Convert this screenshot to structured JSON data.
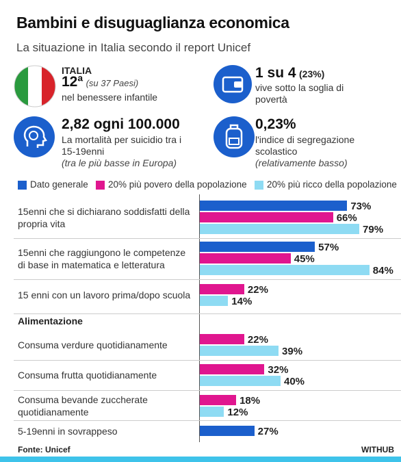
{
  "header": {
    "title": "Bambini e disuguaglianza economica",
    "subtitle": "La situazione in Italia secondo il report Unicef"
  },
  "stats": [
    {
      "heading": "ITALIA",
      "big": "12ª",
      "note": "(su 37 Paesi)",
      "text": "nel benessere infantile"
    },
    {
      "big": "1 su 4",
      "note": "(23%)",
      "text": "vive sotto la soglia di povertà"
    },
    {
      "big": "2,82 ogni 100.000",
      "text": "La mortalità per suicidio tra i 15-19enni",
      "note": "(tra le più basse in Europa)"
    },
    {
      "big": "0,23%",
      "text": "l'indice di segregazione scolastico",
      "note": "(relativamente basso)"
    }
  ],
  "chart_data": {
    "type": "bar",
    "orientation": "horizontal",
    "section_label": "Alimentazione",
    "categories": [
      "15enni che si dichiarano soddisfatti della propria vita",
      "15enni che raggiungono le competenze di base in matematica e letteratura",
      "15 enni con un lavoro prima/dopo scuola",
      "Consuma verdure quotidianamente",
      "Consuma frutta quotidianamente",
      "Consuma bevande zuccherate quotidianamente",
      "5-19enni in sovrappeso"
    ],
    "series": [
      {
        "name": "Dato generale",
        "color": "#1b5fcc",
        "values": [
          73,
          57,
          null,
          null,
          null,
          null,
          27
        ],
        "value_labels": [
          "73%",
          "57%",
          null,
          null,
          null,
          null,
          "27%"
        ]
      },
      {
        "name": "20% più povero della popolazione",
        "color": "#e0168f",
        "values": [
          66,
          45,
          22,
          22,
          32,
          18,
          null
        ],
        "value_labels": [
          "66%",
          "45%",
          "22%",
          "22%",
          "32%",
          "18%",
          null
        ]
      },
      {
        "name": "20% più ricco della popolazione",
        "color": "#8edbf3",
        "values": [
          79,
          84,
          14,
          39,
          40,
          12,
          null
        ],
        "value_labels": [
          "79%",
          "84%",
          "14%",
          "39%",
          "40%",
          "12%",
          null
        ]
      }
    ]
  },
  "footer": {
    "source": "Fonte: Unicef",
    "brand": "WITHUB"
  }
}
